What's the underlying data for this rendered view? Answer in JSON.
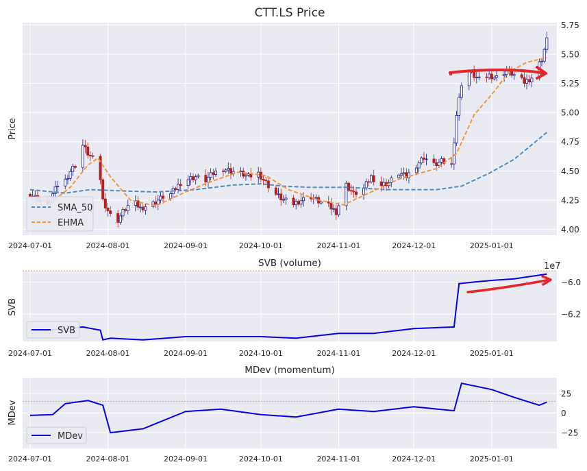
{
  "figure": {
    "price_title": "CTT.LS Price",
    "svb_title": "SVB (volume)",
    "mdev_title": "MDev (momentum)",
    "price_ylabel": "Price",
    "svb_ylabel": "SVB",
    "mdev_ylabel": "MDev",
    "svb_offset_label": "1e7",
    "legend_sma": "SMA_50",
    "legend_ehma": "EHMA",
    "legend_svb": "SVB",
    "legend_mdev": "MDev"
  },
  "colors": {
    "background": "#eaeaf2",
    "grid": "#ffffff",
    "sma": "#4c8cc4",
    "ehma": "#f5963c",
    "candle_up": "#1a1a8c",
    "candle_down": "#b22222",
    "svb_line": "#0000ee",
    "mdev_line": "#0000ee",
    "reference": "#f5963c",
    "annotation": "#e8252a"
  },
  "chart_data": [
    {
      "type": "candlestick",
      "title": "CTT.LS Price",
      "ylabel": "Price",
      "x_ticks": [
        "2024-07-01",
        "2024-08-01",
        "2024-09-01",
        "2024-10-01",
        "2024-11-01",
        "2024-12-01",
        "2025-01-01"
      ],
      "y_ticks": [
        "4.00",
        "4.25",
        "4.50",
        "4.75",
        "5.00",
        "5.25",
        "5.50",
        "5.75"
      ],
      "xlim": [
        "2024-06-28",
        "2025-01-27"
      ],
      "ylim": [
        3.95,
        5.77
      ],
      "close_series": [
        [
          "2024-07-01",
          4.3
        ],
        [
          "2024-07-05",
          4.25
        ],
        [
          "2024-07-08",
          4.2
        ],
        [
          "2024-07-10",
          4.3
        ],
        [
          "2024-07-12",
          4.38
        ],
        [
          "2024-07-15",
          4.42
        ],
        [
          "2024-07-17",
          4.5
        ],
        [
          "2024-07-19",
          4.55
        ],
        [
          "2024-07-22",
          4.72
        ],
        [
          "2024-07-24",
          4.65
        ],
        [
          "2024-07-26",
          4.6
        ],
        [
          "2024-07-28",
          4.62
        ],
        [
          "2024-07-30",
          4.25
        ],
        [
          "2024-08-02",
          4.12
        ],
        [
          "2024-08-05",
          4.08
        ],
        [
          "2024-08-07",
          4.15
        ],
        [
          "2024-08-09",
          4.2
        ],
        [
          "2024-08-12",
          4.22
        ],
        [
          "2024-08-14",
          4.18
        ],
        [
          "2024-08-16",
          4.2
        ],
        [
          "2024-08-19",
          4.22
        ],
        [
          "2024-08-21",
          4.25
        ],
        [
          "2024-08-23",
          4.28
        ],
        [
          "2024-08-26",
          4.3
        ],
        [
          "2024-08-28",
          4.35
        ],
        [
          "2024-08-30",
          4.4
        ],
        [
          "2024-09-02",
          4.43
        ],
        [
          "2024-09-05",
          4.45
        ],
        [
          "2024-09-09",
          4.42
        ],
        [
          "2024-09-12",
          4.48
        ],
        [
          "2024-09-16",
          4.52
        ],
        [
          "2024-09-19",
          4.5
        ],
        [
          "2024-09-23",
          4.48
        ],
        [
          "2024-09-26",
          4.45
        ],
        [
          "2024-09-30",
          4.48
        ],
        [
          "2024-10-03",
          4.4
        ],
        [
          "2024-10-07",
          4.3
        ],
        [
          "2024-10-10",
          4.25
        ],
        [
          "2024-10-14",
          4.22
        ],
        [
          "2024-10-17",
          4.25
        ],
        [
          "2024-10-21",
          4.28
        ],
        [
          "2024-10-24",
          4.24
        ],
        [
          "2024-10-28",
          4.2
        ],
        [
          "2024-10-31",
          4.15
        ],
        [
          "2024-11-04",
          4.38
        ],
        [
          "2024-11-07",
          4.3
        ],
        [
          "2024-11-11",
          4.35
        ],
        [
          "2024-11-14",
          4.45
        ],
        [
          "2024-11-18",
          4.38
        ],
        [
          "2024-11-21",
          4.4
        ],
        [
          "2024-11-25",
          4.48
        ],
        [
          "2024-11-28",
          4.45
        ],
        [
          "2024-12-02",
          4.55
        ],
        [
          "2024-12-05",
          4.62
        ],
        [
          "2024-12-09",
          4.55
        ],
        [
          "2024-12-12",
          4.58
        ],
        [
          "2024-12-16",
          4.55
        ],
        [
          "2024-12-18",
          4.98
        ],
        [
          "2024-12-20",
          5.25
        ],
        [
          "2024-12-23",
          5.35
        ],
        [
          "2024-12-27",
          5.28
        ],
        [
          "2024-12-31",
          5.32
        ],
        [
          "2025-01-03",
          5.3
        ],
        [
          "2025-01-07",
          5.36
        ],
        [
          "2025-01-10",
          5.32
        ],
        [
          "2025-01-14",
          5.26
        ],
        [
          "2025-01-17",
          5.3
        ],
        [
          "2025-01-21",
          5.46
        ],
        [
          "2025-01-23",
          5.62
        ]
      ],
      "series": [
        {
          "name": "SMA_50",
          "style": "dashed",
          "points": [
            [
              "2024-07-01",
              4.34
            ],
            [
              "2024-07-15",
              4.31
            ],
            [
              "2024-07-25",
              4.34
            ],
            [
              "2024-08-05",
              4.33
            ],
            [
              "2024-08-20",
              4.32
            ],
            [
              "2024-09-05",
              4.34
            ],
            [
              "2024-09-20",
              4.38
            ],
            [
              "2024-10-01",
              4.39
            ],
            [
              "2024-10-10",
              4.37
            ],
            [
              "2024-10-20",
              4.36
            ],
            [
              "2024-11-05",
              4.36
            ],
            [
              "2024-11-20",
              4.34
            ],
            [
              "2024-12-10",
              4.34
            ],
            [
              "2024-12-20",
              4.37
            ],
            [
              "2024-12-31",
              4.48
            ],
            [
              "2025-01-10",
              4.6
            ],
            [
              "2025-01-23",
              4.83
            ]
          ]
        },
        {
          "name": "EHMA",
          "style": "dashed",
          "points": [
            [
              "2024-07-01",
              4.26
            ],
            [
              "2024-07-10",
              4.24
            ],
            [
              "2024-07-17",
              4.36
            ],
            [
              "2024-07-24",
              4.55
            ],
            [
              "2024-07-28",
              4.61
            ],
            [
              "2024-08-02",
              4.45
            ],
            [
              "2024-08-10",
              4.25
            ],
            [
              "2024-08-20",
              4.2
            ],
            [
              "2024-09-01",
              4.32
            ],
            [
              "2024-09-10",
              4.4
            ],
            [
              "2024-09-22",
              4.49
            ],
            [
              "2024-10-03",
              4.46
            ],
            [
              "2024-10-12",
              4.34
            ],
            [
              "2024-10-24",
              4.25
            ],
            [
              "2024-11-03",
              4.21
            ],
            [
              "2024-11-12",
              4.3
            ],
            [
              "2024-11-25",
              4.43
            ],
            [
              "2024-12-10",
              4.52
            ],
            [
              "2024-12-18",
              4.65
            ],
            [
              "2024-12-25",
              4.98
            ],
            [
              "2025-01-02",
              5.18
            ],
            [
              "2025-01-08",
              5.35
            ],
            [
              "2025-01-15",
              5.43
            ],
            [
              "2025-01-23",
              5.47
            ]
          ]
        }
      ],
      "legend": "lower-left"
    },
    {
      "type": "line",
      "title": "SVB (volume)",
      "ylabel": "SVB",
      "y_offset_label": "1e7",
      "x_ticks": [
        "2024-07-01",
        "2024-08-01",
        "2024-09-01",
        "2024-10-01",
        "2024-11-01",
        "2024-12-01",
        "2025-01-01"
      ],
      "y_ticks": [
        "−6.0",
        "−6.2"
      ],
      "ylim": [
        -6.37,
        -5.93
      ],
      "reference_line": -5.93,
      "series": [
        {
          "name": "SVB",
          "points": [
            [
              "2024-07-01",
              -6.3
            ],
            [
              "2024-07-08",
              -6.3
            ],
            [
              "2024-07-15",
              -6.29
            ],
            [
              "2024-07-22",
              -6.28
            ],
            [
              "2024-07-29",
              -6.3
            ],
            [
              "2024-07-30",
              -6.36
            ],
            [
              "2024-08-02",
              -6.35
            ],
            [
              "2024-08-15",
              -6.36
            ],
            [
              "2024-09-01",
              -6.34
            ],
            [
              "2024-09-15",
              -6.34
            ],
            [
              "2024-10-01",
              -6.34
            ],
            [
              "2024-10-15",
              -6.35
            ],
            [
              "2024-11-01",
              -6.32
            ],
            [
              "2024-11-15",
              -6.32
            ],
            [
              "2024-12-01",
              -6.29
            ],
            [
              "2024-12-17",
              -6.28
            ],
            [
              "2024-12-19",
              -6.01
            ],
            [
              "2024-12-25",
              -6.0
            ],
            [
              "2025-01-01",
              -5.99
            ],
            [
              "2025-01-10",
              -5.98
            ],
            [
              "2025-01-23",
              -5.95
            ]
          ]
        }
      ],
      "legend": "lower-left"
    },
    {
      "type": "line",
      "title": "MDev (momentum)",
      "ylabel": "MDev",
      "x_ticks": [
        "2024-07-01",
        "2024-08-01",
        "2024-09-01",
        "2024-10-01",
        "2024-11-01",
        "2024-12-01",
        "2025-01-01"
      ],
      "y_ticks": [
        "25",
        "0",
        "−25"
      ],
      "ylim": [
        -45,
        45
      ],
      "reference_line": 15,
      "series": [
        {
          "name": "MDev",
          "points": [
            [
              "2024-07-01",
              -3
            ],
            [
              "2024-07-10",
              -2
            ],
            [
              "2024-07-15",
              12
            ],
            [
              "2024-07-24",
              16
            ],
            [
              "2024-07-30",
              10
            ],
            [
              "2024-08-02",
              -25
            ],
            [
              "2024-08-15",
              -20
            ],
            [
              "2024-09-01",
              2
            ],
            [
              "2024-09-15",
              5
            ],
            [
              "2024-10-01",
              -2
            ],
            [
              "2024-10-15",
              -5
            ],
            [
              "2024-11-01",
              5
            ],
            [
              "2024-11-15",
              2
            ],
            [
              "2024-12-01",
              8
            ],
            [
              "2024-12-17",
              3
            ],
            [
              "2024-12-20",
              38
            ],
            [
              "2025-01-01",
              30
            ],
            [
              "2025-01-10",
              20
            ],
            [
              "2025-01-20",
              10
            ],
            [
              "2025-01-23",
              14
            ]
          ]
        }
      ],
      "legend": "lower-left"
    }
  ]
}
